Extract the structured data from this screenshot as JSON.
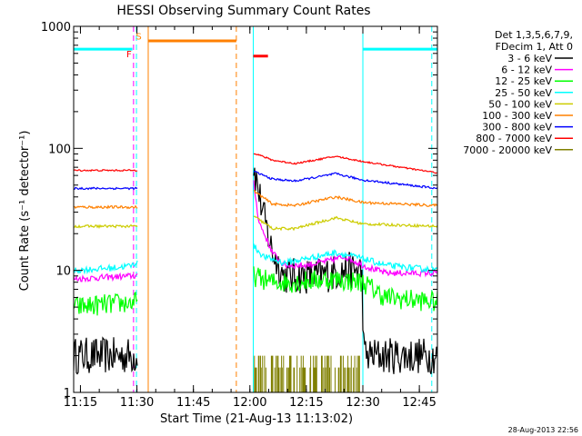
{
  "chart_data": {
    "type": "line",
    "title": "HESSI Observing Summary Count Rates",
    "xlabel": "Start Time (21-Aug-13 11:13:02)",
    "ylabel": "Count Rate (s⁻¹ detector⁻¹)",
    "footer": "28-Aug-2013 22:56",
    "xlim": [
      11.22,
      12.83
    ],
    "ylim": [
      1,
      1000
    ],
    "y_scale": "log",
    "x_ticks": [
      {
        "v": 11.25,
        "label": "11:15"
      },
      {
        "v": 11.5,
        "label": "11:30"
      },
      {
        "v": 11.75,
        "label": "11:45"
      },
      {
        "v": 12.0,
        "label": "12:00"
      },
      {
        "v": 12.25,
        "label": "12:15"
      },
      {
        "v": 12.5,
        "label": "12:30"
      },
      {
        "v": 12.75,
        "label": "12:45"
      }
    ],
    "y_ticks": [
      {
        "v": 1,
        "label": "1"
      },
      {
        "v": 10,
        "label": "10"
      },
      {
        "v": 100,
        "label": "100"
      },
      {
        "v": 1000,
        "label": "1000"
      }
    ],
    "legend_header": [
      "Det 1,3,5,6,7,9,",
      "FDecim 1, Att 0"
    ],
    "legend_placement": "right",
    "gaps": [
      [
        11.505,
        12.015
      ]
    ],
    "series": [
      {
        "name": "3 - 6 keV",
        "color": "#000000",
        "noise": 0.35,
        "points": [
          [
            11.22,
            2.0
          ],
          [
            11.48,
            2.0
          ],
          [
            11.505,
            2.0
          ],
          [
            12.015,
            75
          ],
          [
            12.06,
            28
          ],
          [
            12.1,
            14
          ],
          [
            12.15,
            9
          ],
          [
            12.2,
            9
          ],
          [
            12.3,
            9
          ],
          [
            12.42,
            10
          ],
          [
            12.495,
            10
          ],
          [
            12.505,
            2.0
          ],
          [
            12.83,
            2.0
          ]
        ]
      },
      {
        "name": "6 - 12 keV",
        "color": "#ff00ff",
        "noise": 0.06,
        "points": [
          [
            11.22,
            8.5
          ],
          [
            11.48,
            9
          ],
          [
            11.505,
            9
          ],
          [
            12.015,
            55
          ],
          [
            12.04,
            25
          ],
          [
            12.1,
            14
          ],
          [
            12.15,
            11
          ],
          [
            12.25,
            11
          ],
          [
            12.35,
            12
          ],
          [
            12.42,
            13
          ],
          [
            12.5,
            11
          ],
          [
            12.6,
            9.5
          ],
          [
            12.83,
            9.5
          ]
        ]
      },
      {
        "name": "12 - 25 keV",
        "color": "#00ff00",
        "noise": 0.2,
        "points": [
          [
            11.22,
            5
          ],
          [
            11.505,
            5.5
          ],
          [
            12.015,
            9
          ],
          [
            12.1,
            8
          ],
          [
            12.2,
            8
          ],
          [
            12.35,
            8.5
          ],
          [
            12.5,
            8
          ],
          [
            12.6,
            6
          ],
          [
            12.83,
            5.5
          ]
        ]
      },
      {
        "name": "25 - 50 keV",
        "color": "#00ffff",
        "noise": 0.06,
        "points": [
          [
            11.22,
            10
          ],
          [
            11.4,
            10.5
          ],
          [
            11.48,
            11
          ],
          [
            11.505,
            12
          ],
          [
            12.015,
            16
          ],
          [
            12.06,
            13
          ],
          [
            12.15,
            11.5
          ],
          [
            12.25,
            12.5
          ],
          [
            12.38,
            14
          ],
          [
            12.5,
            12.5
          ],
          [
            12.6,
            11
          ],
          [
            12.83,
            10
          ]
        ]
      },
      {
        "name": "50 - 100 keV",
        "color": "#cccc00",
        "noise": 0.025,
        "points": [
          [
            11.22,
            23
          ],
          [
            11.505,
            23
          ],
          [
            12.015,
            28
          ],
          [
            12.1,
            22
          ],
          [
            12.2,
            22
          ],
          [
            12.38,
            27
          ],
          [
            12.5,
            24
          ],
          [
            12.83,
            23
          ]
        ]
      },
      {
        "name": "100 - 300 keV",
        "color": "#ff8000",
        "noise": 0.025,
        "points": [
          [
            11.22,
            33
          ],
          [
            11.505,
            33
          ],
          [
            12.015,
            45
          ],
          [
            12.1,
            35
          ],
          [
            12.2,
            34
          ],
          [
            12.38,
            40
          ],
          [
            12.5,
            36
          ],
          [
            12.83,
            34
          ]
        ]
      },
      {
        "name": "300 - 800 keV",
        "color": "#0000ff",
        "noise": 0.02,
        "points": [
          [
            11.22,
            47
          ],
          [
            11.505,
            47
          ],
          [
            12.015,
            65
          ],
          [
            12.1,
            56
          ],
          [
            12.2,
            54
          ],
          [
            12.38,
            62
          ],
          [
            12.5,
            55
          ],
          [
            12.83,
            47
          ]
        ]
      },
      {
        "name": "800 - 7000 keV",
        "color": "#ff0000",
        "noise": 0.015,
        "points": [
          [
            11.22,
            66
          ],
          [
            11.505,
            66
          ],
          [
            12.015,
            92
          ],
          [
            12.1,
            80
          ],
          [
            12.2,
            75
          ],
          [
            12.38,
            86
          ],
          [
            12.5,
            78
          ],
          [
            12.83,
            63
          ]
        ]
      },
      {
        "name": "7000 - 20000 keV",
        "color": "#808000",
        "noise": 0,
        "points": []
      }
    ],
    "flag_bars": [
      {
        "color": "#00ffff",
        "x0": 11.22,
        "x1": 11.48,
        "y": 650
      },
      {
        "color": "#ff8000",
        "x0": 11.55,
        "x1": 11.94,
        "y": 760
      },
      {
        "color": "#ff0000",
        "x0": 12.015,
        "x1": 12.08,
        "y": 570
      },
      {
        "color": "#00ffff",
        "x0": 12.5,
        "x1": 12.83,
        "y": 650
      }
    ],
    "markers": [
      {
        "label": "F",
        "color": "#ff0000",
        "x": 11.465,
        "y": 560
      },
      {
        "label": "S",
        "color": "#ff8000",
        "x": 11.508,
        "y": 780
      }
    ],
    "vlines": [
      {
        "x": 11.22,
        "color": "#00ffff",
        "style": "solid"
      },
      {
        "x": 11.485,
        "color": "#ff00ff",
        "style": "dashed"
      },
      {
        "x": 11.498,
        "color": "#00ffff",
        "style": "dashed"
      },
      {
        "x": 11.55,
        "color": "#ff8000",
        "style": "solid"
      },
      {
        "x": 11.94,
        "color": "#ff8000",
        "style": "dashed"
      },
      {
        "x": 12.015,
        "color": "#00ffff",
        "style": "solid"
      },
      {
        "x": 12.5,
        "color": "#00ffff",
        "style": "solid"
      },
      {
        "x": 12.805,
        "color": "#00ffff",
        "style": "dashed"
      }
    ]
  }
}
